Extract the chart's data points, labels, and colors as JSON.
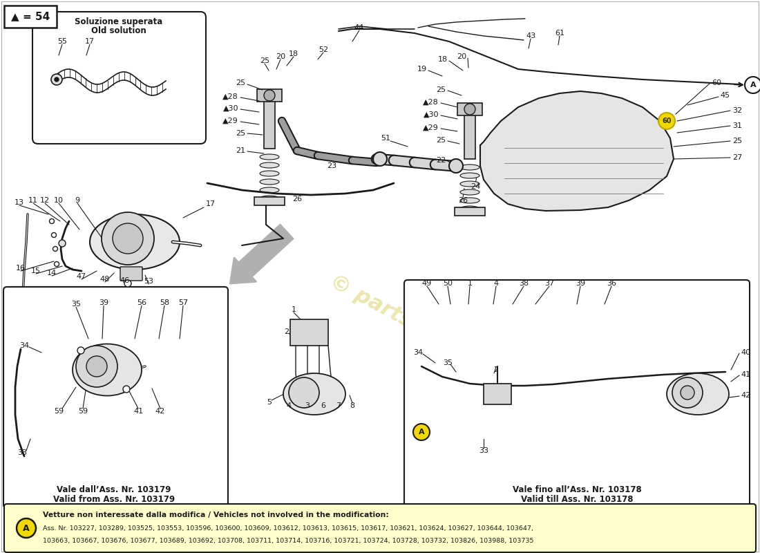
{
  "bg_color": "#ffffff",
  "diagram_color": "#1a1a1a",
  "yellow_fill": "#ffffcc",
  "accent_yellow": "#f0d800",
  "watermark_color": "#d4c84a",
  "bottom_note_line1": "Vetture non interessate dalla modifica / Vehicles not involved in the modification:",
  "bottom_note_line2": "Ass. Nr. 103227, 103289, 103525, 103553, 103596, 103600, 103609, 103612, 103613, 103615, 103617, 103621, 103624, 103627, 103644, 103647,",
  "bottom_note_line3": "103663, 103667, 103676, 103677, 103689, 103692, 103708, 103711, 103714, 103716, 103721, 103724, 103728, 103732, 103826, 103988, 103735",
  "legend_text": "▲ = 54",
  "old_sol_line1": "Soluzione superata",
  "old_sol_line2": "Old solution",
  "bl_footer1": "Vale dall’Ass. Nr. 103179",
  "bl_footer2": "Valid from Ass. Nr. 103179",
  "br_footer1": "Vale fino all’Ass. Nr. 103178",
  "br_footer2": "Valid till Ass. Nr. 103178"
}
